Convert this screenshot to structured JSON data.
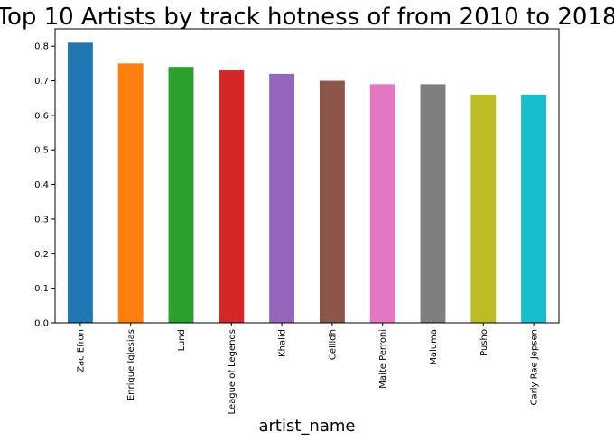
{
  "chart_data": {
    "type": "bar",
    "title": "Top 10 Artists by track hotness of from 2010 to 2018",
    "xlabel": "artist_name",
    "ylabel": "",
    "categories": [
      "Zac Efron",
      "Enrique Iglesias",
      "Lund",
      "League of Legends",
      "Khalid",
      "Ceilidh",
      "Maite Perroni",
      "Maluma",
      "Pusho",
      "Carly Rae Jepsen"
    ],
    "values": [
      0.81,
      0.75,
      0.74,
      0.73,
      0.72,
      0.7,
      0.69,
      0.69,
      0.66,
      0.66
    ],
    "colors": [
      "#1f77b4",
      "#ff7f0e",
      "#2ca02c",
      "#d62728",
      "#9467bd",
      "#8c564b",
      "#e377c2",
      "#7f7f7f",
      "#bcbd22",
      "#17becf"
    ],
    "ylim": [
      0,
      0.85
    ],
    "yticks": [
      0.0,
      0.1,
      0.2,
      0.3,
      0.4,
      0.5,
      0.6,
      0.7,
      0.8
    ],
    "ytick_labels": [
      "0.0",
      "0.1",
      "0.2",
      "0.3",
      "0.4",
      "0.5",
      "0.6",
      "0.7",
      "0.8"
    ],
    "grid": false,
    "legend": "none"
  }
}
